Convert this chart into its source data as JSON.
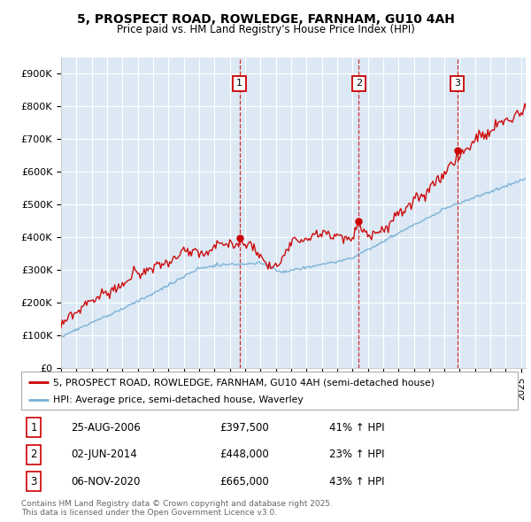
{
  "title": "5, PROSPECT ROAD, ROWLEDGE, FARNHAM, GU10 4AH",
  "subtitle": "Price paid vs. HM Land Registry's House Price Index (HPI)",
  "plot_bg_color": "#dce9f5",
  "sale_year_floats": [
    2006.646,
    2014.418,
    2020.838
  ],
  "sale_prices": [
    397500,
    448000,
    665000
  ],
  "sale_labels": [
    "1",
    "2",
    "3"
  ],
  "sale_info": [
    {
      "label": "1",
      "date": "25-AUG-2006",
      "price": "£397,500",
      "change": "41% ↑ HPI"
    },
    {
      "label": "2",
      "date": "02-JUN-2014",
      "price": "£448,000",
      "change": "23% ↑ HPI"
    },
    {
      "label": "3",
      "date": "06-NOV-2020",
      "price": "£665,000",
      "change": "43% ↑ HPI"
    }
  ],
  "legend_entries": [
    "5, PROSPECT ROAD, ROWLEDGE, FARNHAM, GU10 4AH (semi-detached house)",
    "HPI: Average price, semi-detached house, Waverley"
  ],
  "red_line_color": "#cc0000",
  "blue_line_color": "#7ab0d4",
  "footer_text": "Contains HM Land Registry data © Crown copyright and database right 2025.\nThis data is licensed under the Open Government Licence v3.0.",
  "yticks": [
    0,
    100000,
    200000,
    300000,
    400000,
    500000,
    600000,
    700000,
    800000,
    900000
  ],
  "ytick_labels": [
    "£0",
    "£100K",
    "£200K",
    "£300K",
    "£400K",
    "£500K",
    "£600K",
    "£700K",
    "£800K",
    "£900K"
  ],
  "xstart": 1995,
  "xend": 2025,
  "ylim_max": 950000
}
